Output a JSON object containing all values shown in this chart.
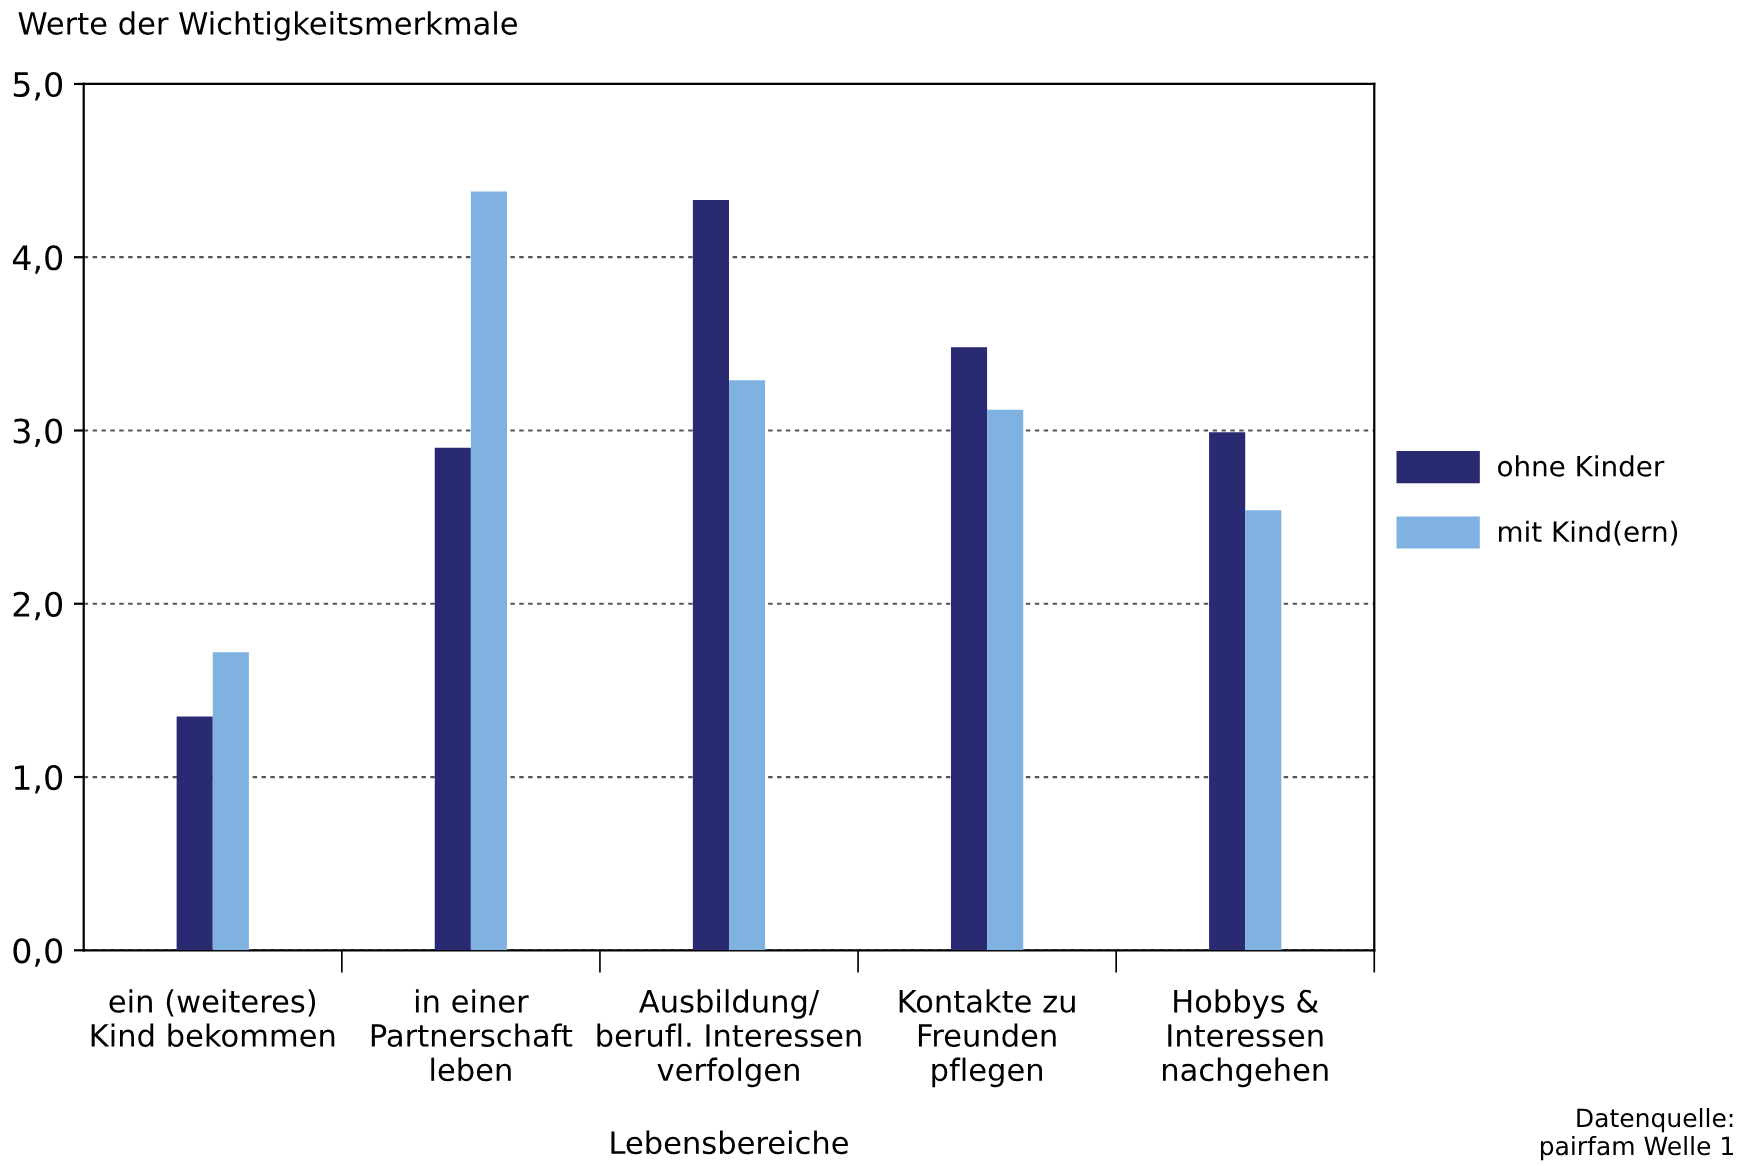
{
  "chart_data": {
    "type": "bar",
    "ylabel": "Werte der Wichtigkeitsmerkmale",
    "xlabel": "Lebensbereiche",
    "categories": [
      "ein (weiteres)\nKind bekommen",
      "in einer\nPartnerschaft\nleben",
      "Ausbildung/\nberufl. Interessen\nverfolgen",
      "Kontakte zu\nFreunden\npflegen",
      "Hobbys &\nInteressen\nnachgehen"
    ],
    "series": [
      {
        "name": "ohne Kinder",
        "color": "#2a2a72",
        "values": [
          1.35,
          2.9,
          4.33,
          3.48,
          2.99
        ]
      },
      {
        "name": "mit Kind(ern)",
        "color": "#7fb2e0",
        "values": [
          1.72,
          4.38,
          3.29,
          3.12,
          2.54
        ]
      }
    ],
    "ylim": [
      0,
      5
    ],
    "yticks": [
      {
        "value": 0,
        "label": "0,0"
      },
      {
        "value": 1,
        "label": "1,0"
      },
      {
        "value": 2,
        "label": "2,0"
      },
      {
        "value": 3,
        "label": "3,0"
      },
      {
        "value": 4,
        "label": "4,0"
      },
      {
        "value": 5,
        "label": "5,0"
      }
    ],
    "grid": "y",
    "legend": "right",
    "annotations": [
      "Datenquelle:\npairfam Welle 1"
    ]
  }
}
